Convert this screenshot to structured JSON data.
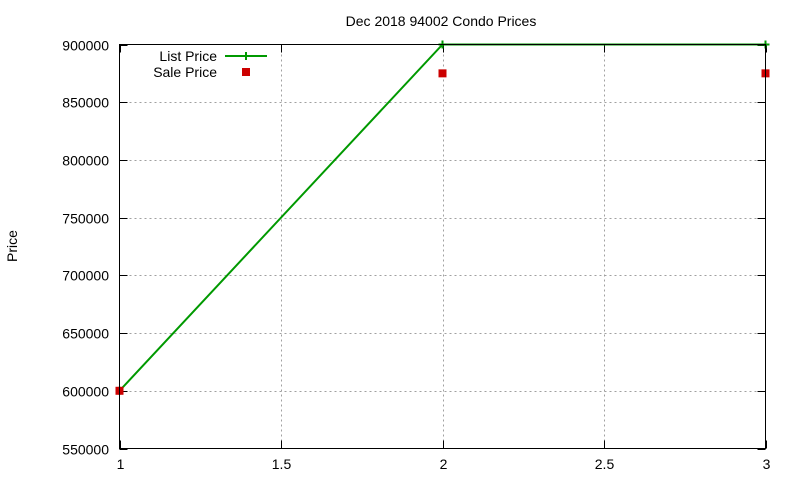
{
  "chart_data": {
    "type": "line",
    "title": "Dec 2018 94002 Condo Prices",
    "xlabel": "",
    "ylabel": "Price",
    "xlim": [
      1,
      3
    ],
    "ylim": [
      550000,
      900000
    ],
    "x_ticks": [
      "1",
      "1.5",
      "2",
      "2.5",
      "3"
    ],
    "x_tick_values": [
      1,
      1.5,
      2,
      2.5,
      3
    ],
    "y_ticks": [
      "550000",
      "600000",
      "650000",
      "700000",
      "750000",
      "800000",
      "850000",
      "900000"
    ],
    "y_tick_values": [
      550000,
      600000,
      650000,
      700000,
      750000,
      800000,
      850000,
      900000
    ],
    "grid": true,
    "legend_position": "top-left",
    "x": [
      1,
      2,
      3
    ],
    "series": [
      {
        "name": "List Price",
        "style": "linespoints",
        "marker": "plus",
        "color": "#009900",
        "values": [
          600000,
          900000,
          900000
        ]
      },
      {
        "name": "Sale Price",
        "style": "points",
        "marker": "square",
        "color": "#cc0000",
        "values": [
          600000,
          875000,
          875000
        ]
      }
    ]
  }
}
